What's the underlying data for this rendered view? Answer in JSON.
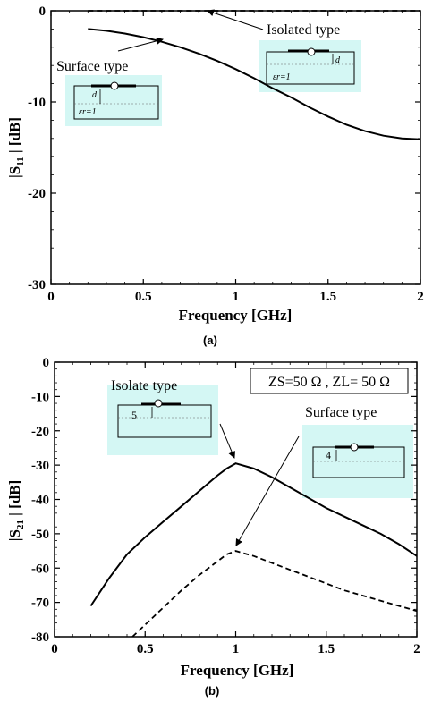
{
  "chart_data": [
    {
      "type": "line",
      "panel_label": "(a)",
      "xlabel": "Frequency [GHz]",
      "ylabel": "|S11 | [dB]",
      "ylabel_main": "|S",
      "ylabel_sub": "11",
      "ylabel_rest": " | [dB]",
      "xlim": [
        0,
        2
      ],
      "ylim": [
        -30,
        0
      ],
      "xticks": [
        0,
        0.5,
        1,
        1.5,
        2
      ],
      "yticks": [
        0,
        -10,
        -20,
        -30
      ],
      "xtick_labels": [
        "0",
        "0.5",
        "1",
        "1.5",
        "2"
      ],
      "ytick_labels": [
        "0",
        "-10",
        "-20",
        "-30"
      ],
      "series": [
        {
          "name": "Isolated  type",
          "style": "dashed",
          "x": [
            0.2,
            0.5,
            1.0,
            1.5,
            2.0
          ],
          "y": [
            0,
            0,
            0,
            0,
            0
          ]
        },
        {
          "name": "Surface type",
          "style": "solid",
          "x": [
            0.2,
            0.3,
            0.4,
            0.5,
            0.6,
            0.7,
            0.8,
            0.9,
            1.0,
            1.1,
            1.2,
            1.3,
            1.4,
            1.5,
            1.6,
            1.7,
            1.8,
            1.9,
            2.0
          ],
          "y": [
            -2.0,
            -2.2,
            -2.5,
            -2.9,
            -3.4,
            -4.0,
            -4.7,
            -5.5,
            -6.4,
            -7.4,
            -8.5,
            -9.5,
            -10.6,
            -11.6,
            -12.5,
            -13.2,
            -13.7,
            -14.0,
            -14.1
          ]
        }
      ],
      "insets": [
        {
          "label_d": "d",
          "label_er": "εr=1"
        },
        {
          "label_d": "d",
          "label_er": "εr=1"
        }
      ]
    },
    {
      "type": "line",
      "panel_label": "(b)",
      "xlabel": "Frequency [GHz]",
      "ylabel": "|S21 | [dB]",
      "ylabel_main": "|S",
      "ylabel_sub": "21",
      "ylabel_rest": " | [dB]",
      "xlim": [
        0,
        2
      ],
      "ylim": [
        -80,
        0
      ],
      "xticks": [
        0,
        0.5,
        1,
        1.5,
        2
      ],
      "yticks": [
        0,
        -10,
        -20,
        -30,
        -40,
        -50,
        -60,
        -70,
        -80
      ],
      "xtick_labels": [
        "0",
        "0.5",
        "1",
        "1.5",
        "2"
      ],
      "ytick_labels": [
        "0",
        "-10",
        "-20",
        "-30",
        "-40",
        "-50",
        "-60",
        "-70",
        "-80"
      ],
      "legend_box": "ZS=50 Ω , ZL= 50 Ω",
      "series": [
        {
          "name": "Isolate type",
          "style": "solid",
          "x": [
            0.2,
            0.3,
            0.4,
            0.5,
            0.6,
            0.7,
            0.8,
            0.9,
            0.95,
            1.0,
            1.1,
            1.2,
            1.3,
            1.4,
            1.5,
            1.6,
            1.7,
            1.8,
            1.9,
            2.0
          ],
          "y": [
            -71,
            -63,
            -56,
            -51,
            -46.5,
            -42,
            -37.5,
            -33,
            -31,
            -29.5,
            -31,
            -33.5,
            -36.5,
            -39.5,
            -42.5,
            -45,
            -47.5,
            -50,
            -53,
            -56.5
          ]
        },
        {
          "name": "Surface type",
          "style": "dashed",
          "x": [
            0.43,
            0.5,
            0.6,
            0.7,
            0.8,
            0.9,
            0.95,
            1.0,
            1.1,
            1.2,
            1.3,
            1.4,
            1.5,
            1.6,
            1.7,
            1.8,
            1.9,
            2.0
          ],
          "y": [
            -80,
            -76.5,
            -71.5,
            -66.5,
            -62,
            -58,
            -56,
            -55,
            -56.5,
            -58.5,
            -60.5,
            -62.5,
            -64.5,
            -66.5,
            -68,
            -69.5,
            -71,
            -72.5
          ]
        }
      ],
      "insets": [
        {
          "label_d": "5"
        },
        {
          "label_d": "4"
        }
      ]
    }
  ]
}
